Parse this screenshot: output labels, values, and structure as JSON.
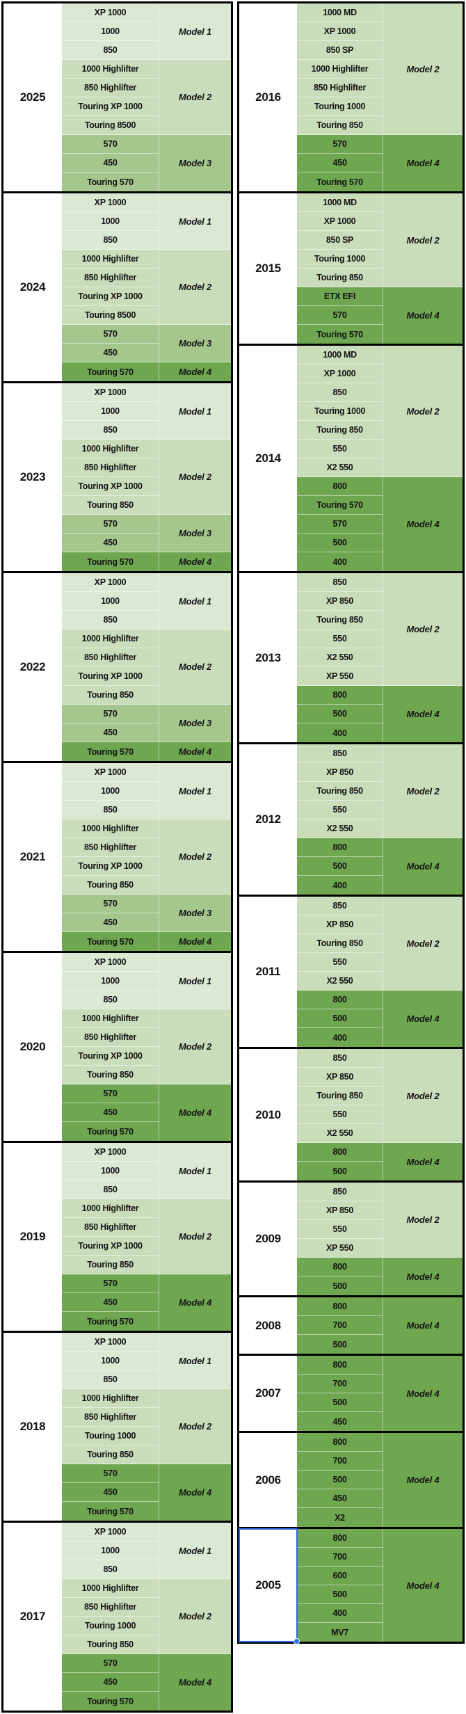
{
  "colors": {
    "m1": "#DBE8D4",
    "m2": "#C9DDBB",
    "m3": "#A5C78D",
    "m4": "#6EA750",
    "block_border": "#000000",
    "cell_text": "#141414",
    "selection_blue": "#2E6CE0",
    "background": "#FFFFFF"
  },
  "left_table": {
    "blocks": [
      {
        "year": "2025",
        "groups": [
          {
            "label": "Model 1",
            "shade": "m1",
            "models": [
              "XP 1000",
              "1000",
              "850"
            ]
          },
          {
            "label": "Model 2",
            "shade": "m2",
            "models": [
              "1000 Highlifter",
              "850 Highlifter",
              "Touring XP 1000",
              "Touring 8500"
            ]
          },
          {
            "label": "Model 3",
            "shade": "m3",
            "models": [
              "570",
              "450",
              "Touring 570"
            ]
          }
        ]
      },
      {
        "year": "2024",
        "groups": [
          {
            "label": "Model 1",
            "shade": "m1",
            "models": [
              "XP 1000",
              "1000",
              "850"
            ]
          },
          {
            "label": "Model 2",
            "shade": "m2",
            "models": [
              "1000 Highlifter",
              "850 Highlifter",
              "Touring XP 1000",
              "Touring 8500"
            ]
          },
          {
            "label": "Model 3",
            "shade": "m3",
            "models": [
              "570",
              "450"
            ]
          },
          {
            "label": "Model 4",
            "shade": "m4",
            "models": [
              "Touring 570"
            ]
          }
        ]
      },
      {
        "year": "2023",
        "groups": [
          {
            "label": "Model 1",
            "shade": "m1",
            "models": [
              "XP 1000",
              "1000",
              "850"
            ]
          },
          {
            "label": "Model 2",
            "shade": "m2",
            "models": [
              "1000 Highlifter",
              "850 Highlifter",
              "Touring XP 1000",
              "Touring 850"
            ]
          },
          {
            "label": "Model 3",
            "shade": "m3",
            "models": [
              "570",
              "450"
            ]
          },
          {
            "label": "Model 4",
            "shade": "m4",
            "models": [
              "Touring 570"
            ]
          }
        ]
      },
      {
        "year": "2022",
        "groups": [
          {
            "label": "Model 1",
            "shade": "m1",
            "models": [
              "XP 1000",
              "1000",
              "850"
            ]
          },
          {
            "label": "Model 2",
            "shade": "m2",
            "models": [
              "1000 Highlifter",
              "850 Highlifter",
              "Touring XP 1000",
              "Touring 850"
            ]
          },
          {
            "label": "Model 3",
            "shade": "m3",
            "models": [
              "570",
              "450"
            ]
          },
          {
            "label": "Model 4",
            "shade": "m4",
            "models": [
              "Touring 570"
            ]
          }
        ]
      },
      {
        "year": "2021",
        "groups": [
          {
            "label": "Model 1",
            "shade": "m1",
            "models": [
              "XP 1000",
              "1000",
              "850"
            ]
          },
          {
            "label": "Model 2",
            "shade": "m2",
            "models": [
              "1000 Highlifter",
              "850 Highlifter",
              "Touring XP 1000",
              "Touring 850"
            ]
          },
          {
            "label": "Model 3",
            "shade": "m3",
            "models": [
              "570",
              "450"
            ]
          },
          {
            "label": "Model 4",
            "shade": "m4",
            "models": [
              "Touring 570"
            ]
          }
        ]
      },
      {
        "year": "2020",
        "groups": [
          {
            "label": "Model 1",
            "shade": "m1",
            "models": [
              "XP 1000",
              "1000",
              "850"
            ]
          },
          {
            "label": "Model 2",
            "shade": "m2",
            "models": [
              "1000 Highlifter",
              "850 Highlifter",
              "Touring XP 1000",
              "Touring 850"
            ]
          },
          {
            "label": "Model 4",
            "shade": "m4",
            "models": [
              "570",
              "450",
              "Touring 570"
            ]
          }
        ]
      },
      {
        "year": "2019",
        "groups": [
          {
            "label": "Model 1",
            "shade": "m1",
            "models": [
              "XP 1000",
              "1000",
              "850"
            ]
          },
          {
            "label": "Model 2",
            "shade": "m2",
            "models": [
              "1000 Highlifter",
              "850 Highlifter",
              "Touring XP 1000",
              "Touring 850"
            ]
          },
          {
            "label": "Model 4",
            "shade": "m4",
            "models": [
              "570",
              "450",
              "Touring 570"
            ]
          }
        ]
      },
      {
        "year": "2018",
        "groups": [
          {
            "label": "Model 1",
            "shade": "m1",
            "models": [
              "XP 1000",
              "1000",
              "850"
            ]
          },
          {
            "label": "Model 2",
            "shade": "m2",
            "models": [
              "1000 Highlifter",
              "850 Highlifter",
              "Touring 1000",
              "Touring 850"
            ]
          },
          {
            "label": "Model 4",
            "shade": "m4",
            "models": [
              "570",
              "450",
              "Touring 570"
            ]
          }
        ]
      },
      {
        "year": "2017",
        "groups": [
          {
            "label": "Model 1",
            "shade": "m1",
            "models": [
              "XP 1000",
              "1000",
              "850"
            ]
          },
          {
            "label": "Model 2",
            "shade": "m2",
            "models": [
              "1000 Highlifter",
              "850 Highlifter",
              "Touring 1000",
              "Touring 850"
            ]
          },
          {
            "label": "Model 4",
            "shade": "m4",
            "models": [
              "570",
              "450",
              "Touring 570"
            ]
          }
        ]
      }
    ]
  },
  "right_table": {
    "blocks": [
      {
        "year": "2016",
        "groups": [
          {
            "label": "Model 2",
            "shade": "m2",
            "models": [
              "1000 MD",
              "XP 1000",
              "850 SP",
              "1000 Highlifter",
              "850 Highlifter",
              "Touring 1000",
              "Touring 850"
            ]
          },
          {
            "label": "Model 4",
            "shade": "m4",
            "models": [
              "570",
              "450",
              "Touring 570"
            ]
          }
        ]
      },
      {
        "year": "2015",
        "groups": [
          {
            "label": "Model 2",
            "shade": "m2",
            "models": [
              "1000 MD",
              "XP 1000",
              "850 SP",
              "Touring 1000",
              "Touring 850"
            ]
          },
          {
            "label": "Model 4",
            "shade": "m4",
            "models": [
              "ETX EFI",
              "570",
              "Touring 570"
            ]
          }
        ]
      },
      {
        "year": "2014",
        "groups": [
          {
            "label": "Model 2",
            "shade": "m2",
            "models": [
              "1000 MD",
              "XP 1000",
              "850",
              "Touring 1000",
              "Touring 850",
              "550",
              "X2 550"
            ]
          },
          {
            "label": "Model 4",
            "shade": "m4",
            "models": [
              "800",
              "Touring 570",
              "570",
              "500",
              "400"
            ]
          }
        ]
      },
      {
        "year": "2013",
        "groups": [
          {
            "label": "Model 2",
            "shade": "m2",
            "models": [
              "850",
              "XP 850",
              "Touring 850",
              "550",
              "X2 550",
              "XP 550"
            ]
          },
          {
            "label": "Model 4",
            "shade": "m4",
            "models": [
              "800",
              "500",
              "400"
            ]
          }
        ]
      },
      {
        "year": "2012",
        "groups": [
          {
            "label": "Model 2",
            "shade": "m2",
            "models": [
              "850",
              "XP 850",
              "Touring 850",
              "550",
              "X2 550"
            ]
          },
          {
            "label": "Model 4",
            "shade": "m4",
            "models": [
              "800",
              "500",
              "400"
            ]
          }
        ]
      },
      {
        "year": "2011",
        "groups": [
          {
            "label": "Model 2",
            "shade": "m2",
            "models": [
              "850",
              "XP 850",
              "Touring 850",
              "550",
              "X2 550"
            ]
          },
          {
            "label": "Model 4",
            "shade": "m4",
            "models": [
              "800",
              "500",
              "400"
            ]
          }
        ]
      },
      {
        "year": "2010",
        "groups": [
          {
            "label": "Model 2",
            "shade": "m2",
            "models": [
              "850",
              "XP 850",
              "Touring 850",
              "550",
              "X2 550"
            ]
          },
          {
            "label": "Model 4",
            "shade": "m4",
            "models": [
              "800",
              "500"
            ]
          }
        ]
      },
      {
        "year": "2009",
        "groups": [
          {
            "label": "Model 2",
            "shade": "m2",
            "models": [
              "850",
              "XP 850",
              "550",
              "XP 550"
            ]
          },
          {
            "label": "Model 4",
            "shade": "m4",
            "models": [
              "800",
              "500"
            ]
          }
        ]
      },
      {
        "year": "2008",
        "groups": [
          {
            "label": "Model 4",
            "shade": "m4",
            "models": [
              "800",
              "700",
              "500"
            ]
          }
        ]
      },
      {
        "year": "2007",
        "groups": [
          {
            "label": "Model 4",
            "shade": "m4",
            "models": [
              "800",
              "700",
              "500",
              "450"
            ]
          }
        ]
      },
      {
        "year": "2006",
        "groups": [
          {
            "label": "Model 4",
            "shade": "m4",
            "models": [
              "800",
              "700",
              "500",
              "450",
              "X2"
            ]
          }
        ]
      },
      {
        "year": "2005",
        "selected": true,
        "groups": [
          {
            "label": "Model 4",
            "shade": "m4",
            "models": [
              "800",
              "700",
              "600",
              "500",
              "400",
              "MV7"
            ]
          }
        ]
      }
    ]
  }
}
